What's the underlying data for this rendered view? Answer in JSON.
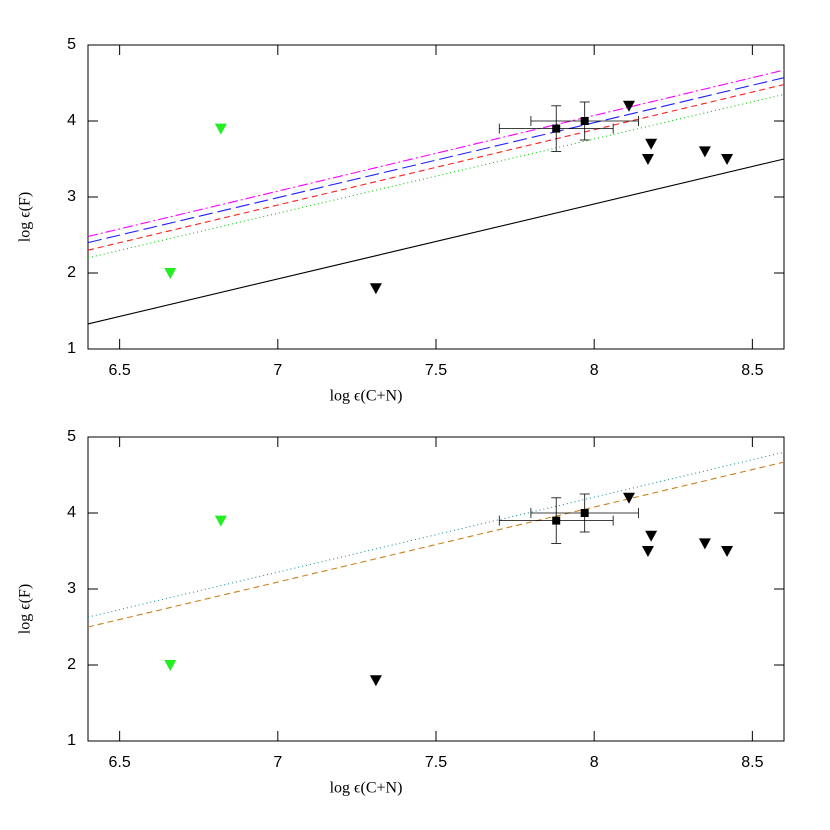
{
  "chart_data": [
    {
      "type": "scatter",
      "xlabel": "log ϵ(C+N)",
      "ylabel": "log ϵ(F)",
      "xlim": [
        6.4,
        8.6
      ],
      "ylim": [
        1,
        5
      ],
      "xticks": [
        6.5,
        7,
        7.5,
        8,
        8.5
      ],
      "yticks": [
        1,
        2,
        3,
        4,
        5
      ],
      "series": [
        {
          "type": "line",
          "color": "#000000",
          "dash": "solid",
          "x": [
            6.4,
            8.6
          ],
          "values": [
            1.33,
            3.5
          ]
        },
        {
          "type": "line",
          "color": "#00cc00",
          "dash": "dotted",
          "x": [
            6.4,
            8.6
          ],
          "values": [
            2.2,
            4.35
          ]
        },
        {
          "type": "line",
          "color": "#ff2020",
          "dash": "dashed",
          "x": [
            6.4,
            8.6
          ],
          "values": [
            2.3,
            4.48
          ]
        },
        {
          "type": "line",
          "color": "#2020ff",
          "dash": "longdash",
          "x": [
            6.4,
            8.6
          ],
          "values": [
            2.4,
            4.57
          ]
        },
        {
          "type": "line",
          "color": "#ff00ff",
          "dash": "dashdot",
          "x": [
            6.4,
            8.6
          ],
          "values": [
            2.48,
            4.67
          ]
        },
        {
          "type": "upperlimit",
          "color": "#000000",
          "x": [
            7.31,
            8.11,
            8.17,
            8.18,
            8.35,
            8.42
          ],
          "values": [
            1.8,
            4.2,
            3.5,
            3.7,
            3.6,
            3.5
          ]
        },
        {
          "type": "upperlimit",
          "color": "#22ee22",
          "x": [
            6.66,
            6.82
          ],
          "values": [
            2.0,
            3.9
          ]
        },
        {
          "type": "errorbar",
          "color": "#000000",
          "x": [
            7.88,
            7.97
          ],
          "values": [
            3.9,
            4.0
          ],
          "xerr": [
            0.18,
            0.17
          ],
          "yerr": [
            0.3,
            0.25
          ]
        }
      ]
    },
    {
      "type": "scatter",
      "xlabel": "log ϵ(C+N)",
      "ylabel": "log ϵ(F)",
      "xlim": [
        6.4,
        8.6
      ],
      "ylim": [
        1,
        5
      ],
      "xticks": [
        6.5,
        7,
        7.5,
        8,
        8.5
      ],
      "yticks": [
        1,
        2,
        3,
        4,
        5
      ],
      "series": [
        {
          "type": "line",
          "color": "#2090a0",
          "dash": "dotted",
          "x": [
            6.4,
            8.6
          ],
          "values": [
            2.63,
            4.8
          ]
        },
        {
          "type": "line",
          "color": "#c8821e",
          "dash": "dashed",
          "x": [
            6.4,
            8.6
          ],
          "values": [
            2.5,
            4.67
          ]
        },
        {
          "type": "upperlimit",
          "color": "#000000",
          "x": [
            7.31,
            8.11,
            8.17,
            8.18,
            8.35,
            8.42
          ],
          "values": [
            1.8,
            4.2,
            3.5,
            3.7,
            3.6,
            3.5
          ]
        },
        {
          "type": "upperlimit",
          "color": "#22ee22",
          "x": [
            6.66,
            6.82
          ],
          "values": [
            2.0,
            3.9
          ]
        },
        {
          "type": "errorbar",
          "color": "#000000",
          "x": [
            7.88,
            7.97
          ],
          "values": [
            3.9,
            4.0
          ],
          "xerr": [
            0.18,
            0.17
          ],
          "yerr": [
            0.3,
            0.25
          ]
        }
      ]
    }
  ]
}
